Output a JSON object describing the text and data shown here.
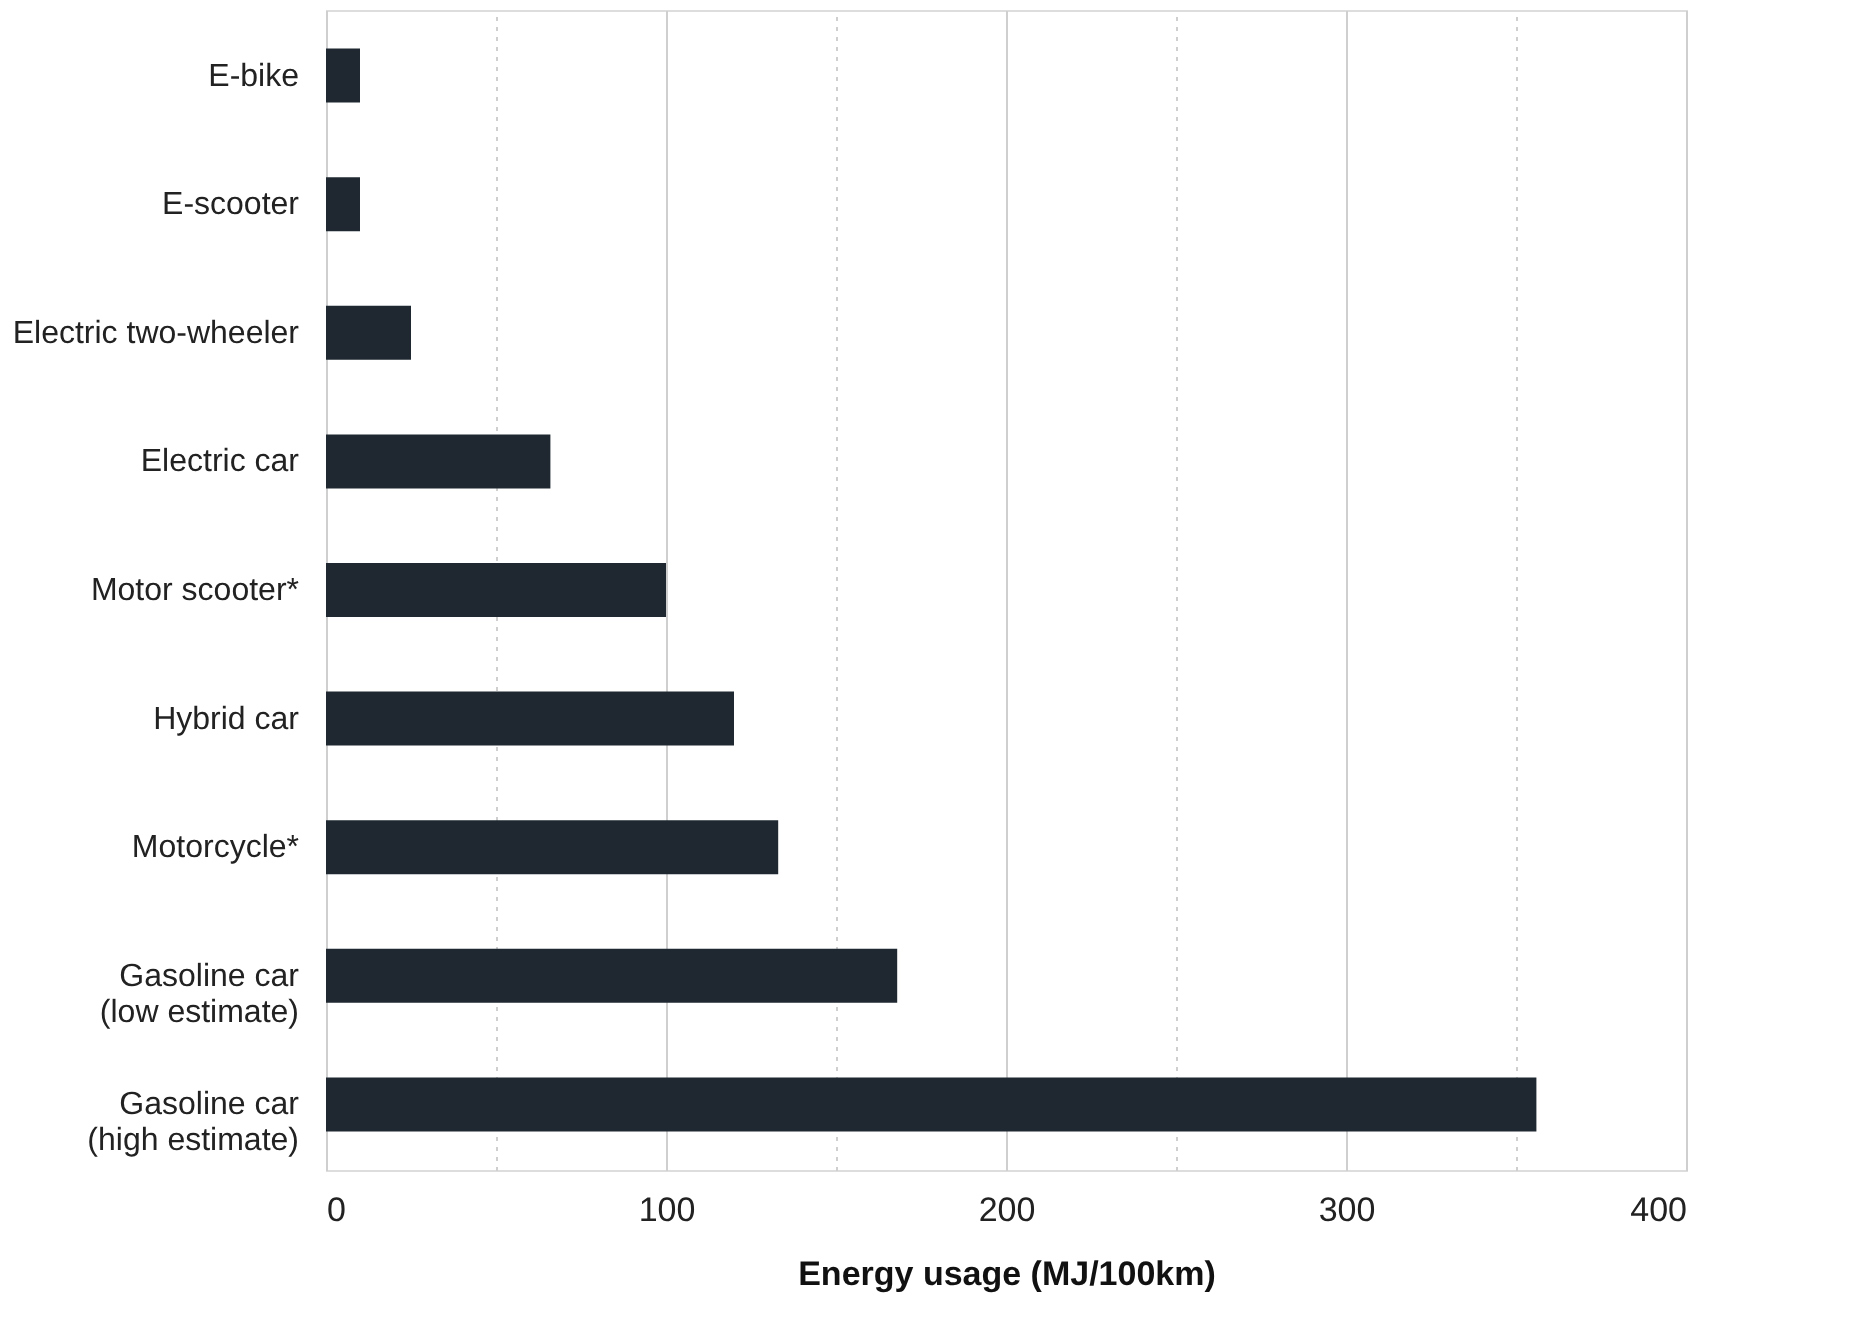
{
  "chart_data": {
    "type": "bar",
    "orientation": "horizontal",
    "categories": [
      "E-bike",
      "E-scooter",
      "Electric two-wheeler",
      "Electric car",
      "Motor scooter*",
      "Hybrid car",
      "Motorcycle*",
      "Gasoline car\n(low estimate)",
      "Gasoline car\n(high estimate)"
    ],
    "values": [
      10,
      10,
      25,
      66,
      100,
      120,
      133,
      168,
      356
    ],
    "color": "#1f2831",
    "xlabel": "Energy usage (MJ/100km)",
    "xlim": [
      0,
      400
    ],
    "xticks": [
      0,
      {
        "value": 50,
        "label": null
      },
      100,
      {
        "value": 150,
        "label": null
      },
      200,
      {
        "value": 250,
        "label": null
      },
      300,
      {
        "value": 350,
        "label": null
      },
      400
    ],
    "grid": "x"
  }
}
